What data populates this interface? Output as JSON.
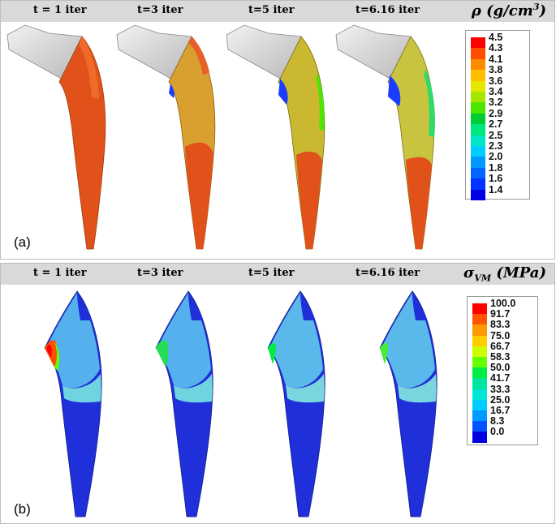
{
  "panel_a": {
    "label": "(a)",
    "quantity_base": "ρ",
    "quantity_unit": "(g/cm",
    "quantity_exp": "3",
    "quantity_close": ")",
    "steps": [
      "t = 1 iter",
      "t=3 iter",
      "t=5 iter",
      "t=6.16 iter"
    ],
    "legend_values": [
      "4.5",
      "4.3",
      "4.1",
      "3.8",
      "3.6",
      "3.4",
      "3.2",
      "2.9",
      "2.7",
      "2.5",
      "2.3",
      "2.0",
      "1.8",
      "1.6",
      "1.4"
    ]
  },
  "panel_b": {
    "label": "(b)",
    "quantity_base": "σ",
    "quantity_sub": "VM",
    "quantity_unit": "(MPa)",
    "steps": [
      "t = 1 iter",
      "t=3 iter",
      "t=5 iter",
      "t=6.16 iter"
    ],
    "legend_values": [
      "100.0",
      "91.7",
      "83.3",
      "75.0",
      "66.7",
      "58.3",
      "50.0",
      "41.7",
      "33.3",
      "25.0",
      "16.7",
      "8.3",
      "0.0"
    ]
  },
  "colors": {
    "scale": [
      "#ff0000",
      "#ff4d00",
      "#ff8c00",
      "#ffbf00",
      "#e6e600",
      "#a6e600",
      "#4de600",
      "#00cc33",
      "#00e680",
      "#00e6c8",
      "#00cfff",
      "#0099ff",
      "#0066ff",
      "#0033ff",
      "#0000e6"
    ],
    "stress_scale": [
      "#ff0000",
      "#ff5500",
      "#ff9900",
      "#ffcc00",
      "#ccff00",
      "#66ff00",
      "#00ee44",
      "#00e6a0",
      "#00e6d6",
      "#00ccff",
      "#0099ff",
      "#0055ff",
      "#0000e0"
    ],
    "density_high": "#e0521a",
    "density_mid": "#d99a2b",
    "density_low_blue": "#1a3cff",
    "stress_base": "#1f2fd9",
    "stress_mid": "#55c9e6",
    "implant_gray": "#d8d8d8"
  }
}
